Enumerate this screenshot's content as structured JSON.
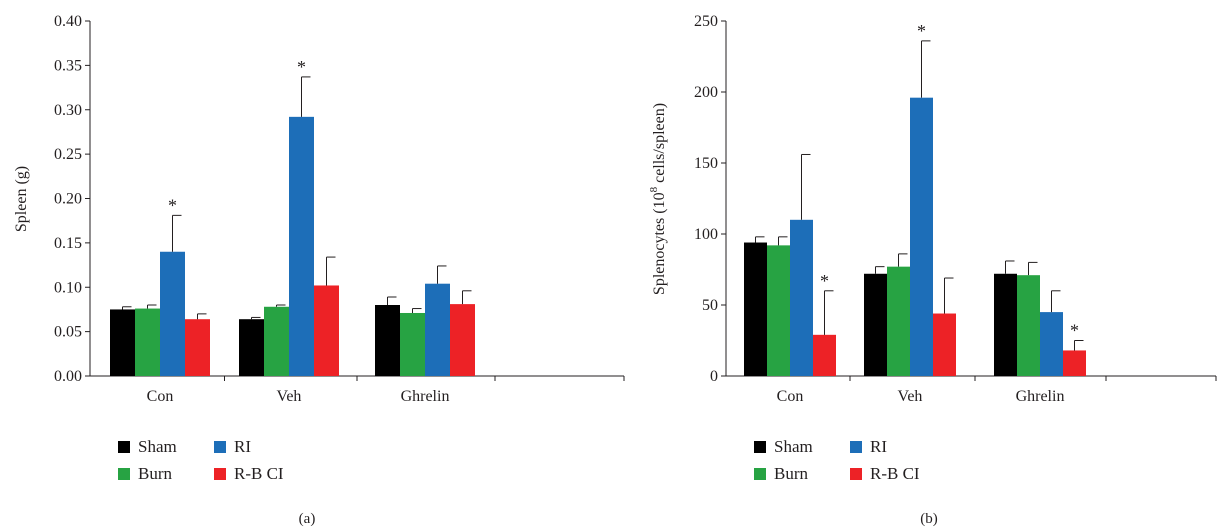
{
  "chart_data": [
    {
      "type": "bar",
      "panel_label": "(a)",
      "title": "",
      "xlabel": "",
      "ylabel": "Spleen (g)",
      "ylim": [
        0,
        0.4
      ],
      "yticks": [
        "0.00",
        "0.05",
        "0.10",
        "0.15",
        "0.20",
        "0.25",
        "0.30",
        "0.35",
        "0.40"
      ],
      "tick_values": [
        0,
        0.05,
        0.1,
        0.15,
        0.2,
        0.25,
        0.3,
        0.35,
        0.4
      ],
      "categories": [
        "Con",
        "Veh",
        "Ghrelin"
      ],
      "series": [
        {
          "name": "Sham",
          "color": "#000000",
          "values": [
            0.075,
            0.064,
            0.08
          ],
          "errors": [
            0.003,
            0.002,
            0.009
          ]
        },
        {
          "name": "Burn",
          "color": "#27a343",
          "values": [
            0.076,
            0.078,
            0.071
          ],
          "errors": [
            0.004,
            0.002,
            0.005
          ]
        },
        {
          "name": "RI",
          "color": "#1d6eb8",
          "values": [
            0.14,
            0.292,
            0.104
          ],
          "errors": [
            0.041,
            0.045,
            0.02
          ]
        },
        {
          "name": "R-B CI",
          "color": "#ed2226",
          "values": [
            0.064,
            0.102,
            0.081
          ],
          "errors": [
            0.006,
            0.032,
            0.015
          ]
        }
      ],
      "significance": [
        {
          "category": "Con",
          "series": "RI",
          "label": "*"
        },
        {
          "category": "Veh",
          "series": "RI",
          "label": "*"
        }
      ],
      "legend_position": "bottom-left",
      "grid": false
    },
    {
      "type": "bar",
      "panel_label": "(b)",
      "title": "",
      "xlabel": "",
      "ylabel_prefix": "Splenocytes (10",
      "ylabel_superscript": "8",
      "ylabel_suffix": " cells/spleen)",
      "ylim": [
        0,
        250
      ],
      "yticks": [
        "0",
        "50",
        "100",
        "150",
        "200",
        "250"
      ],
      "tick_values": [
        0,
        50,
        100,
        150,
        200,
        250
      ],
      "categories": [
        "Con",
        "Veh",
        "Ghrelin"
      ],
      "series": [
        {
          "name": "Sham",
          "color": "#000000",
          "values": [
            94,
            72,
            72
          ],
          "errors": [
            4,
            5,
            9
          ]
        },
        {
          "name": "Burn",
          "color": "#27a343",
          "values": [
            92,
            77,
            71
          ],
          "errors": [
            6,
            9,
            9
          ]
        },
        {
          "name": "RI",
          "color": "#1d6eb8",
          "values": [
            110,
            196,
            45
          ],
          "errors": [
            46,
            40,
            15
          ]
        },
        {
          "name": "R-B CI",
          "color": "#ed2226",
          "values": [
            29,
            44,
            18
          ],
          "errors": [
            31,
            25,
            7
          ]
        }
      ],
      "significance": [
        {
          "category": "Con",
          "series": "R-B CI",
          "label": "*"
        },
        {
          "category": "Veh",
          "series": "RI",
          "label": "*"
        },
        {
          "category": "Ghrelin",
          "series": "R-B CI",
          "label": "*"
        }
      ],
      "legend_position": "bottom-left",
      "grid": false
    }
  ]
}
